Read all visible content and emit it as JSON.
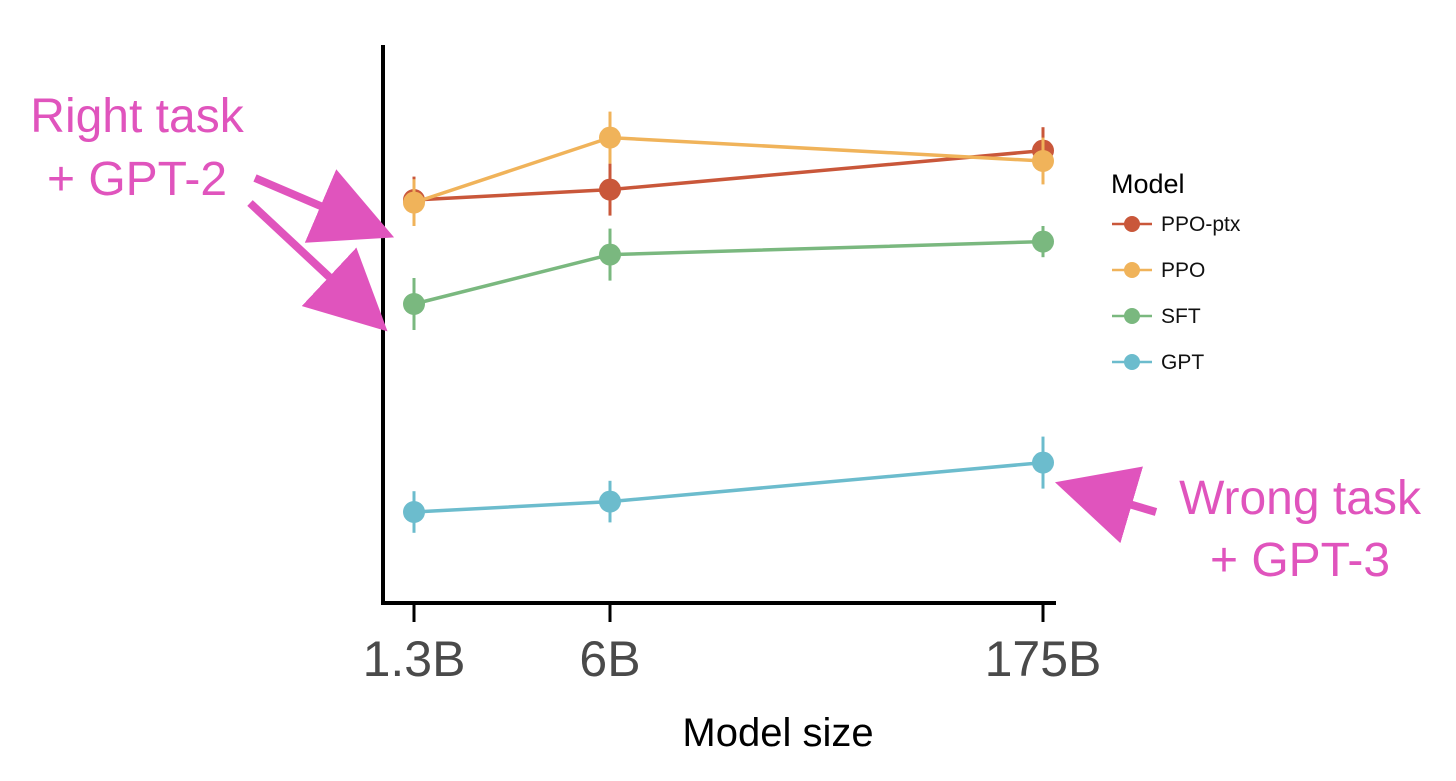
{
  "chart_data": {
    "type": "line",
    "title": "",
    "xlabel": "Model size",
    "ylabel": "",
    "x": [
      "1.3B",
      "6B",
      "175B"
    ],
    "y_axis": {
      "ticks_shown": false,
      "range_relative": [
        0,
        100
      ]
    },
    "grid": false,
    "error_bars": true,
    "legend": {
      "title": "Model",
      "placement": "right"
    },
    "series": [
      {
        "name": "PPO-ptx",
        "color": "#c9573a",
        "values": [
          75.0,
          77.0,
          84.5
        ],
        "err": [
          4.5,
          5.0,
          4.5
        ]
      },
      {
        "name": "PPO",
        "color": "#f0b35a",
        "values": [
          74.5,
          87.0,
          82.5
        ],
        "err": [
          4.5,
          5.0,
          4.5
        ]
      },
      {
        "name": "SFT",
        "color": "#7ab87f",
        "values": [
          55.0,
          64.5,
          67.0
        ],
        "err": [
          5.0,
          5.0,
          3.0
        ]
      },
      {
        "name": "GPT",
        "color": "#6cbccd",
        "values": [
          15.0,
          17.0,
          24.5
        ],
        "err": [
          4.0,
          4.0,
          5.0
        ]
      }
    ],
    "annotations": [
      {
        "id": "right",
        "lines": [
          "Right task",
          "+ GPT-2"
        ],
        "color": "#e054bd"
      },
      {
        "id": "wrong",
        "lines": [
          "Wrong task",
          "+ GPT-3"
        ],
        "color": "#e054bd"
      }
    ]
  }
}
